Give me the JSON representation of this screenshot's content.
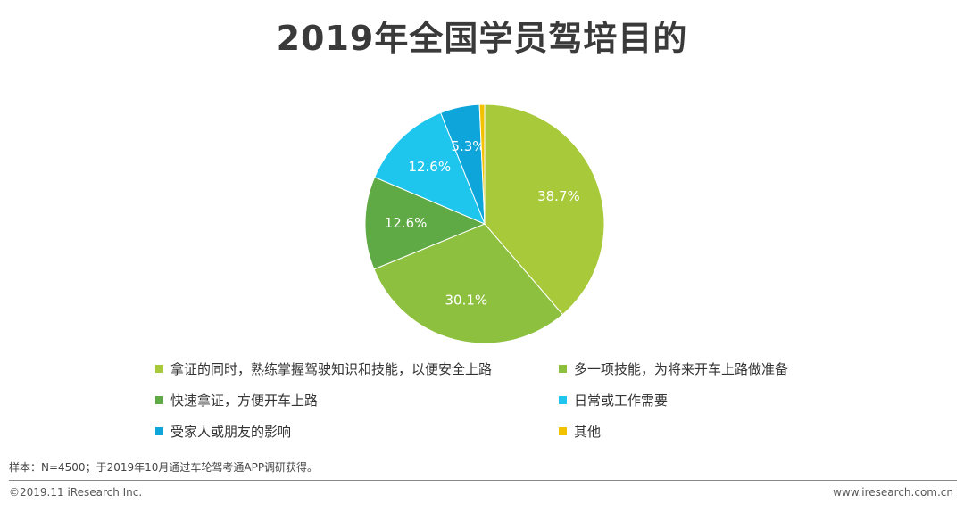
{
  "title": "2019年全国学员驾培目的",
  "chart_data": {
    "type": "pie",
    "title": "2019年全国学员驾培目的",
    "slices": [
      {
        "label": "拿证的同时，熟练掌握驾驶知识和技能，以便安全上路",
        "value": 38.7,
        "display": "38.7%",
        "color": "#a8c93a"
      },
      {
        "label": "多一项技能，为将来开车上路做准备",
        "value": 30.1,
        "display": "30.1%",
        "color": "#8ec03f"
      },
      {
        "label": "快速拿证，方便开车上路",
        "value": 12.6,
        "display": "12.6%",
        "color": "#5faa45"
      },
      {
        "label": "日常或工作需要",
        "value": 12.6,
        "display": "12.6%",
        "color": "#1ec6ee"
      },
      {
        "label": "受家人或朋友的影响",
        "value": 5.3,
        "display": "5.3%",
        "color": "#0ea5da"
      },
      {
        "label": "其他",
        "value": 0.7,
        "display": "",
        "color": "#f2c200"
      }
    ],
    "legend_position": "bottom",
    "start_angle": "12 o'clock",
    "direction": "clockwise"
  },
  "legend": {
    "items": [
      {
        "label": "拿证的同时，熟练掌握驾驶知识和技能，以便安全上路",
        "color": "#a8c93a"
      },
      {
        "label": "多一项技能，为将来开车上路做准备",
        "color": "#8ec03f"
      },
      {
        "label": "快速拿证，方便开车上路",
        "color": "#5faa45"
      },
      {
        "label": "日常或工作需要",
        "color": "#1ec6ee"
      },
      {
        "label": "受家人或朋友的影响",
        "color": "#0ea5da"
      },
      {
        "label": "其他",
        "color": "#f2c200"
      }
    ]
  },
  "note": "样本：N=4500；于2019年10月通过车轮驾考通APP调研获得。",
  "footer": {
    "left": "©2019.11 iResearch Inc.",
    "right": "www.iresearch.com.cn"
  }
}
